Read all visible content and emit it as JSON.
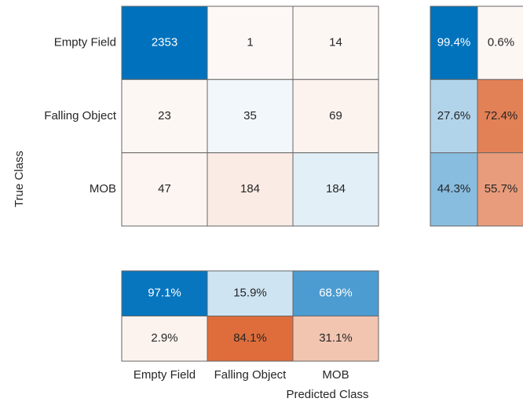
{
  "chart_data": {
    "type": "confusion_matrix",
    "xlabel": "Predicted Class",
    "ylabel": "True Class",
    "categories": [
      "Empty Field",
      "Falling Object",
      "MOB"
    ],
    "matrix": [
      [
        2353,
        1,
        14
      ],
      [
        23,
        35,
        69
      ],
      [
        47,
        184,
        184
      ]
    ],
    "row_summary": {
      "values": [
        [
          99.4,
          0.6
        ],
        [
          27.6,
          72.4
        ],
        [
          44.3,
          55.7
        ]
      ],
      "value_labels": [
        [
          "99.4%",
          "0.6%"
        ],
        [
          "27.6%",
          "72.4%"
        ],
        [
          "44.3%",
          "55.7%"
        ]
      ]
    },
    "column_summary": {
      "values": [
        [
          97.1,
          15.9,
          68.9
        ],
        [
          2.9,
          84.1,
          31.1
        ]
      ],
      "value_labels": [
        [
          "97.1%",
          "15.9%",
          "68.9%"
        ],
        [
          "2.9%",
          "84.1%",
          "31.1%"
        ]
      ]
    },
    "diagonal_color": "#0072bd",
    "off_diagonal_color": "#d95319"
  }
}
